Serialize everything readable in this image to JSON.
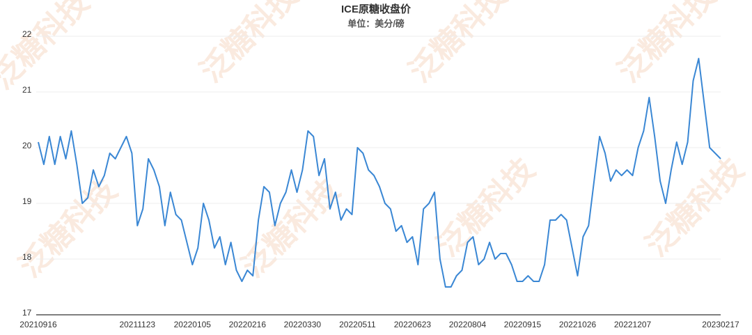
{
  "chart_data": {
    "type": "line",
    "title": "ICE原糖收盘价",
    "subtitle": "单位：美分/磅",
    "watermark": "泛糖科技",
    "color": "#3a87d4",
    "grid": true,
    "ylim": [
      17,
      22
    ],
    "yticks": [
      17,
      18,
      19,
      20,
      21,
      22
    ],
    "categories": [
      "20210916",
      null,
      null,
      null,
      null,
      null,
      null,
      null,
      null,
      null,
      null,
      null,
      null,
      null,
      null,
      null,
      null,
      null,
      "20211123",
      null,
      null,
      null,
      null,
      null,
      null,
      null,
      null,
      null,
      "20220105",
      null,
      null,
      null,
      null,
      null,
      null,
      null,
      null,
      null,
      "20220216",
      null,
      null,
      null,
      null,
      null,
      null,
      null,
      null,
      null,
      "20220330",
      null,
      null,
      null,
      null,
      null,
      null,
      null,
      null,
      null,
      "20220511",
      null,
      null,
      null,
      null,
      null,
      null,
      null,
      null,
      null,
      "20220623",
      null,
      null,
      null,
      null,
      null,
      null,
      null,
      null,
      null,
      "20220804",
      null,
      null,
      null,
      null,
      null,
      null,
      null,
      null,
      null,
      "20220915",
      null,
      null,
      null,
      null,
      null,
      null,
      null,
      null,
      null,
      "20221026",
      null,
      null,
      null,
      null,
      null,
      null,
      null,
      null,
      null,
      "20221207",
      null,
      null,
      null,
      null,
      null,
      null,
      null,
      null,
      null,
      null,
      null,
      null,
      null,
      null,
      null,
      "20230217"
    ],
    "values": [
      20.1,
      19.7,
      20.2,
      19.7,
      20.2,
      19.8,
      20.3,
      19.7,
      19.0,
      19.1,
      19.6,
      19.3,
      19.5,
      19.9,
      19.8,
      20.0,
      20.2,
      19.9,
      18.6,
      18.9,
      19.8,
      19.6,
      19.3,
      18.6,
      19.2,
      18.8,
      18.7,
      18.3,
      17.9,
      18.2,
      19.0,
      18.7,
      18.2,
      18.4,
      17.9,
      18.3,
      17.8,
      17.6,
      17.8,
      17.7,
      18.7,
      19.3,
      19.2,
      18.6,
      19.0,
      19.2,
      19.6,
      19.2,
      19.6,
      20.3,
      20.2,
      19.5,
      19.8,
      18.9,
      19.2,
      18.7,
      18.9,
      18.8,
      20.0,
      19.9,
      19.6,
      19.5,
      19.3,
      19.0,
      18.9,
      18.5,
      18.6,
      18.3,
      18.4,
      17.9,
      18.9,
      19.0,
      19.2,
      18.0,
      17.5,
      17.5,
      17.7,
      17.8,
      18.3,
      18.4,
      17.9,
      18.0,
      18.3,
      18.0,
      18.1,
      18.1,
      17.9,
      17.6,
      17.6,
      17.7,
      17.6,
      17.6,
      17.9,
      18.7,
      18.7,
      18.8,
      18.7,
      18.2,
      17.7,
      18.4,
      18.6,
      19.4,
      20.2,
      19.9,
      19.4,
      19.6,
      19.5,
      19.6,
      19.5,
      20.0,
      20.3,
      20.9,
      20.2,
      19.4,
      19.0,
      19.6,
      20.1,
      19.7,
      20.1,
      21.2,
      21.6,
      20.8,
      20.0,
      19.9,
      19.8
    ]
  }
}
